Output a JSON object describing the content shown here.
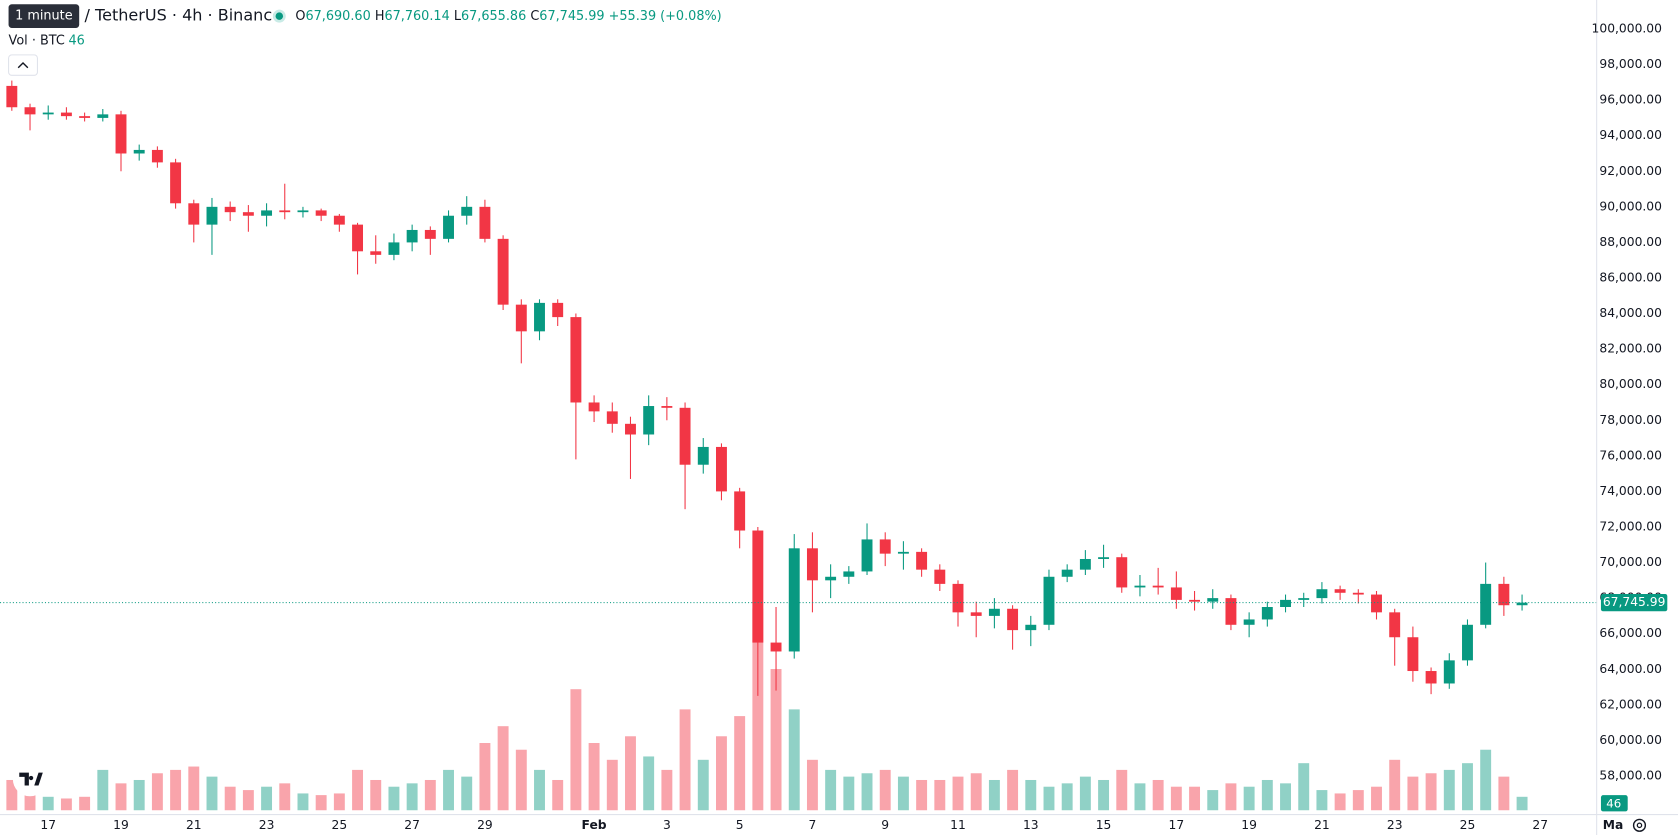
{
  "header": {
    "tooltip": "1 minute",
    "symbol": "/ TetherUS · 4h · Binance",
    "ohlc": [
      {
        "key": "O",
        "value": "67,690.60"
      },
      {
        "key": "H",
        "value": "67,760.14"
      },
      {
        "key": "L",
        "value": "67,655.86"
      },
      {
        "key": "C",
        "value": "67,745.99"
      }
    ],
    "change": "+55.39 (+0.08%)",
    "volume_label": "Vol · BTC",
    "volume_value": "46"
  },
  "chart_data": {
    "type": "candlestick",
    "up_color": "#089981",
    "down_color": "#f23645",
    "candles": [
      [
        96800,
        97100,
        95400,
        95600
      ],
      [
        95600,
        95800,
        94300,
        95200
      ],
      [
        95200,
        95700,
        94900,
        95300
      ],
      [
        95300,
        95600,
        94900,
        95100
      ],
      [
        95100,
        95300,
        94800,
        95000
      ],
      [
        95000,
        95500,
        94800,
        95200
      ],
      [
        95200,
        95400,
        92000,
        93000
      ],
      [
        93000,
        93500,
        92600,
        93200
      ],
      [
        93200,
        93400,
        92200,
        92500
      ],
      [
        92500,
        92700,
        89900,
        90200
      ],
      [
        90200,
        90400,
        88000,
        89000
      ],
      [
        89000,
        90500,
        87300,
        90000
      ],
      [
        90000,
        90300,
        89200,
        89700
      ],
      [
        89700,
        90100,
        88600,
        89500
      ],
      [
        89500,
        90200,
        88900,
        89800
      ],
      [
        89800,
        91300,
        89300,
        89700
      ],
      [
        89700,
        90000,
        89400,
        89800
      ],
      [
        89800,
        89900,
        89200,
        89500
      ],
      [
        89500,
        89600,
        88600,
        89000
      ],
      [
        89000,
        89100,
        86200,
        87500
      ],
      [
        87500,
        88400,
        86800,
        87300
      ],
      [
        87300,
        88500,
        87000,
        88000
      ],
      [
        88000,
        89000,
        87500,
        88700
      ],
      [
        88700,
        88900,
        87300,
        88200
      ],
      [
        88200,
        89800,
        88000,
        89500
      ],
      [
        89500,
        90600,
        89000,
        90000
      ],
      [
        90000,
        90400,
        88000,
        88200
      ],
      [
        88200,
        88400,
        84200,
        84500
      ],
      [
        84500,
        84800,
        81200,
        83000
      ],
      [
        83000,
        84800,
        82500,
        84600
      ],
      [
        84600,
        84800,
        83300,
        83800
      ],
      [
        83800,
        84000,
        75800,
        79000
      ],
      [
        79000,
        79400,
        77900,
        78500
      ],
      [
        78500,
        79000,
        77300,
        77800
      ],
      [
        77800,
        78200,
        74700,
        77200
      ],
      [
        77200,
        79400,
        76600,
        78800
      ],
      [
        78800,
        79300,
        78000,
        78700
      ],
      [
        78700,
        79000,
        73000,
        75500
      ],
      [
        75500,
        77000,
        75000,
        76500
      ],
      [
        76500,
        76700,
        73500,
        74000
      ],
      [
        74000,
        74200,
        70800,
        71800
      ],
      [
        71800,
        72000,
        62500,
        65500
      ],
      [
        65500,
        67500,
        62800,
        65000
      ],
      [
        65000,
        71600,
        64600,
        70800
      ],
      [
        70800,
        71700,
        67200,
        69000
      ],
      [
        69000,
        69900,
        68000,
        69200
      ],
      [
        69200,
        69800,
        68800,
        69500
      ],
      [
        69500,
        72200,
        69300,
        71300
      ],
      [
        71300,
        71700,
        69800,
        70500
      ],
      [
        70500,
        71200,
        69600,
        70600
      ],
      [
        70600,
        70800,
        69200,
        69600
      ],
      [
        69600,
        69900,
        68400,
        68800
      ],
      [
        68800,
        69000,
        66400,
        67200
      ],
      [
        67200,
        67800,
        65800,
        67000
      ],
      [
        67000,
        68000,
        66300,
        67400
      ],
      [
        67400,
        67600,
        65100,
        66200
      ],
      [
        66200,
        67000,
        65300,
        66500
      ],
      [
        66500,
        69600,
        66200,
        69200
      ],
      [
        69200,
        69900,
        68900,
        69600
      ],
      [
        69600,
        70700,
        69300,
        70200
      ],
      [
        70200,
        71000,
        69700,
        70300
      ],
      [
        70300,
        70500,
        68300,
        68600
      ],
      [
        68600,
        69300,
        68100,
        68700
      ],
      [
        68700,
        69700,
        68200,
        68600
      ],
      [
        68600,
        69500,
        67400,
        67900
      ],
      [
        67900,
        68400,
        67300,
        67800
      ],
      [
        67800,
        68500,
        67400,
        68000
      ],
      [
        68000,
        68200,
        66200,
        66500
      ],
      [
        66500,
        67200,
        65800,
        66800
      ],
      [
        66800,
        67800,
        66400,
        67500
      ],
      [
        67500,
        68200,
        67200,
        67900
      ],
      [
        67900,
        68300,
        67500,
        68000
      ],
      [
        68000,
        68900,
        67700,
        68500
      ],
      [
        68500,
        68700,
        67900,
        68300
      ],
      [
        68300,
        68500,
        67700,
        68200
      ],
      [
        68200,
        68400,
        66800,
        67200
      ],
      [
        67200,
        67400,
        64200,
        65800
      ],
      [
        65800,
        66400,
        63300,
        63900
      ],
      [
        63900,
        64100,
        62600,
        63200
      ],
      [
        63200,
        64900,
        62900,
        64500
      ],
      [
        64500,
        66800,
        64200,
        66500
      ],
      [
        66500,
        70000,
        66300,
        68800
      ],
      [
        68800,
        69200,
        67000,
        67600
      ],
      [
        67600,
        68200,
        67300,
        67745.99
      ]
    ],
    "last_label": "67,745.99",
    "volumes": [
      9000,
      7000,
      4000,
      3500,
      4000,
      12000,
      8000,
      9000,
      11000,
      12000,
      13000,
      10000,
      7000,
      6000,
      7000,
      8000,
      5000,
      4500,
      5000,
      12000,
      9000,
      7000,
      8000,
      9000,
      12000,
      10000,
      20000,
      25000,
      18000,
      12000,
      9000,
      36000,
      20000,
      15000,
      22000,
      16000,
      12000,
      30000,
      15000,
      22000,
      28000,
      60000,
      42000,
      30000,
      15000,
      12000,
      10000,
      11000,
      12000,
      10000,
      9000,
      9000,
      10000,
      11000,
      9000,
      12000,
      9000,
      7000,
      8000,
      10000,
      9000,
      12000,
      8000,
      9000,
      7000,
      7000,
      6000,
      8000,
      7000,
      9000,
      8000,
      14000,
      6000,
      5000,
      6000,
      7000,
      15000,
      10000,
      11000,
      12000,
      14000,
      18000,
      10000,
      4000
    ],
    "vlim": [
      0,
      64000
    ],
    "xlim": [
      -0.65,
      87.1
    ],
    "xticks": [
      {
        "value": 2,
        "label": "17"
      },
      {
        "value": 6,
        "label": "19"
      },
      {
        "value": 10,
        "label": "21"
      },
      {
        "value": 14,
        "label": "23"
      },
      {
        "value": 18,
        "label": "25"
      },
      {
        "value": 22,
        "label": "27"
      },
      {
        "value": 26,
        "label": "29"
      },
      {
        "value": 32,
        "label": "Feb"
      },
      {
        "value": 36,
        "label": "3"
      },
      {
        "value": 40,
        "label": "5"
      },
      {
        "value": 44,
        "label": "7"
      },
      {
        "value": 48,
        "label": "9"
      },
      {
        "value": 52,
        "label": "11"
      },
      {
        "value": 56,
        "label": "13"
      },
      {
        "value": 60,
        "label": "15"
      },
      {
        "value": 64,
        "label": "17"
      },
      {
        "value": 68,
        "label": "19"
      },
      {
        "value": 72,
        "label": "21"
      },
      {
        "value": 76,
        "label": "23"
      },
      {
        "value": 80,
        "label": "25"
      },
      {
        "value": 84,
        "label": "27"
      },
      {
        "value": 88,
        "label": "Ma"
      }
    ],
    "ylim": [
      55830,
      101630
    ],
    "yticks": [
      {
        "value": 58000,
        "label": "58,000.00"
      },
      {
        "value": 60000,
        "label": "60,000.00"
      },
      {
        "value": 62000,
        "label": "62,000.00"
      },
      {
        "value": 64000,
        "label": "64,000.00"
      },
      {
        "value": 66000,
        "label": "66,000.00"
      },
      {
        "value": 68000,
        "label": "68,000.00"
      },
      {
        "value": 70000,
        "label": "70,000.00"
      },
      {
        "value": 72000,
        "label": "72,000.00"
      },
      {
        "value": 74000,
        "label": "74,000.00"
      },
      {
        "value": 76000,
        "label": "76,000.00"
      },
      {
        "value": 78000,
        "label": "78,000.00"
      },
      {
        "value": 80000,
        "label": "80,000.00"
      },
      {
        "value": 82000,
        "label": "82,000.00"
      },
      {
        "value": 84000,
        "label": "84,000.00"
      },
      {
        "value": 86000,
        "label": "86,000.00"
      },
      {
        "value": 88000,
        "label": "88,000.00"
      },
      {
        "value": 90000,
        "label": "90,000.00"
      },
      {
        "value": 92000,
        "label": "92,000.00"
      },
      {
        "value": 94000,
        "label": "94,000.00"
      },
      {
        "value": 96000,
        "label": "96,000.00"
      },
      {
        "value": 98000,
        "label": "98,000.00"
      },
      {
        "value": 100000,
        "label": "100,000.00"
      }
    ],
    "grid": true
  }
}
